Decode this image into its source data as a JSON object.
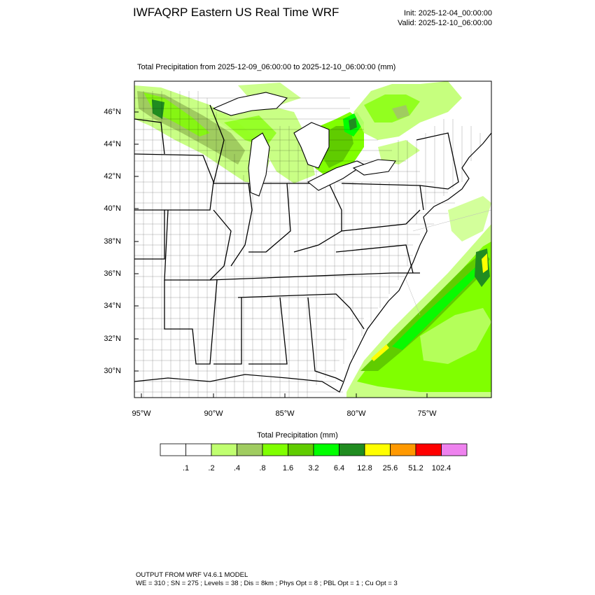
{
  "header": {
    "title": "IWFAQRP Eastern US Real Time WRF",
    "init": "Init: 2025-12-04_00:00:00",
    "valid": "Valid: 2025-12-10_06:00:00"
  },
  "subtitle": "Total Precipitation from 2025-12-09_06:00:00 to 2025-12-10_06:00:00   (mm)",
  "map": {
    "lat_labels": [
      "46°N",
      "44°N",
      "42°N",
      "40°N",
      "38°N",
      "36°N",
      "34°N",
      "32°N",
      "30°N"
    ],
    "lon_labels": [
      "95°W",
      "90°W",
      "85°W",
      "80°W",
      "75°W"
    ]
  },
  "colorbar": {
    "title": "Total Precipitation  (mm)",
    "levels": [
      ".1",
      ".2",
      ".4",
      ".8",
      "1.6",
      "3.2",
      "6.4",
      "12.8",
      "25.6",
      "51.2",
      "102.4"
    ],
    "colors": [
      "#ffffff",
      "#ffffff",
      "#c0ff70",
      "#a0cc60",
      "#80ff00",
      "#60cc00",
      "#00ff00",
      "#208c20",
      "#ffff00",
      "#ff9900",
      "#ff0000",
      "#ee82ee"
    ]
  },
  "footer": {
    "line1": "OUTPUT FROM WRF V4.6.1 MODEL",
    "line2": "WE = 310 ; SN = 275 ; Levels = 38 ; Dis = 8km ; Phys Opt = 8 ; PBL Opt = 1 ; Cu Opt = 3"
  }
}
